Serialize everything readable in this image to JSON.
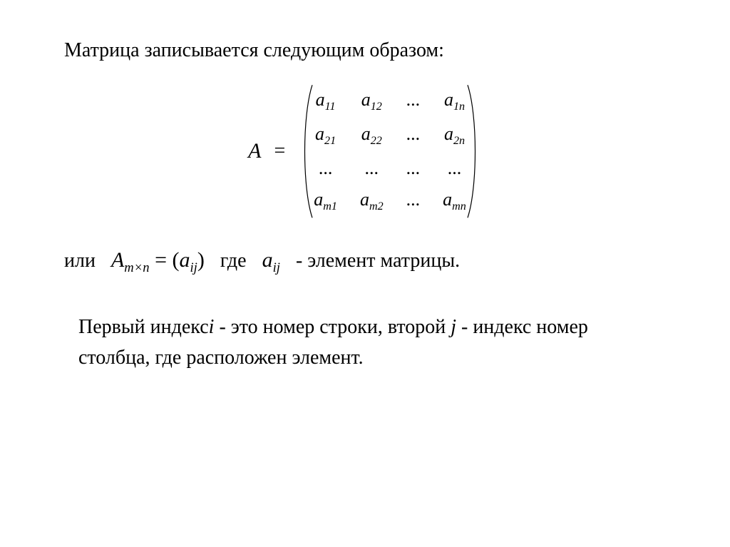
{
  "heading": "Матрица записывается следующим образом:",
  "matrix": {
    "label": "A",
    "equals": "=",
    "rows": [
      [
        {
          "base": "a",
          "sub": "11"
        },
        {
          "base": "a",
          "sub": "12"
        },
        {
          "base": "...",
          "sub": ""
        },
        {
          "base": "a",
          "sub": "1n"
        }
      ],
      [
        {
          "base": "a",
          "sub": "21"
        },
        {
          "base": "a",
          "sub": "22"
        },
        {
          "base": "...",
          "sub": ""
        },
        {
          "base": "a",
          "sub": "2n"
        }
      ],
      [
        {
          "base": "...",
          "sub": ""
        },
        {
          "base": "...",
          "sub": ""
        },
        {
          "base": "...",
          "sub": ""
        },
        {
          "base": "...",
          "sub": ""
        }
      ],
      [
        {
          "base": "a",
          "sub": "m1"
        },
        {
          "base": "a",
          "sub": "m2"
        },
        {
          "base": "...",
          "sub": ""
        },
        {
          "base": "a",
          "sub": "mn"
        }
      ]
    ],
    "paren_stroke": "#000000",
    "paren_stroke_width": 1.2
  },
  "line2": {
    "or": "или",
    "A": "A",
    "Asub": "m×n",
    "eq": " = (",
    "a": "a",
    "asub": "ij",
    "close": ")",
    "where": "где",
    "a2": "a",
    "a2sub": "ij",
    "tail": "- элемент матрицы."
  },
  "para": {
    "t1": "Первый индекс",
    "i": "i",
    "t2": "   - это номер  строки, второй",
    "j": "j",
    "t3": "- индекс номер столбца, где расположен элемент."
  },
  "colors": {
    "background": "#ffffff",
    "text": "#000000"
  },
  "fontsize": {
    "body": 26,
    "heading": 28,
    "math": 30,
    "para": 28
  }
}
